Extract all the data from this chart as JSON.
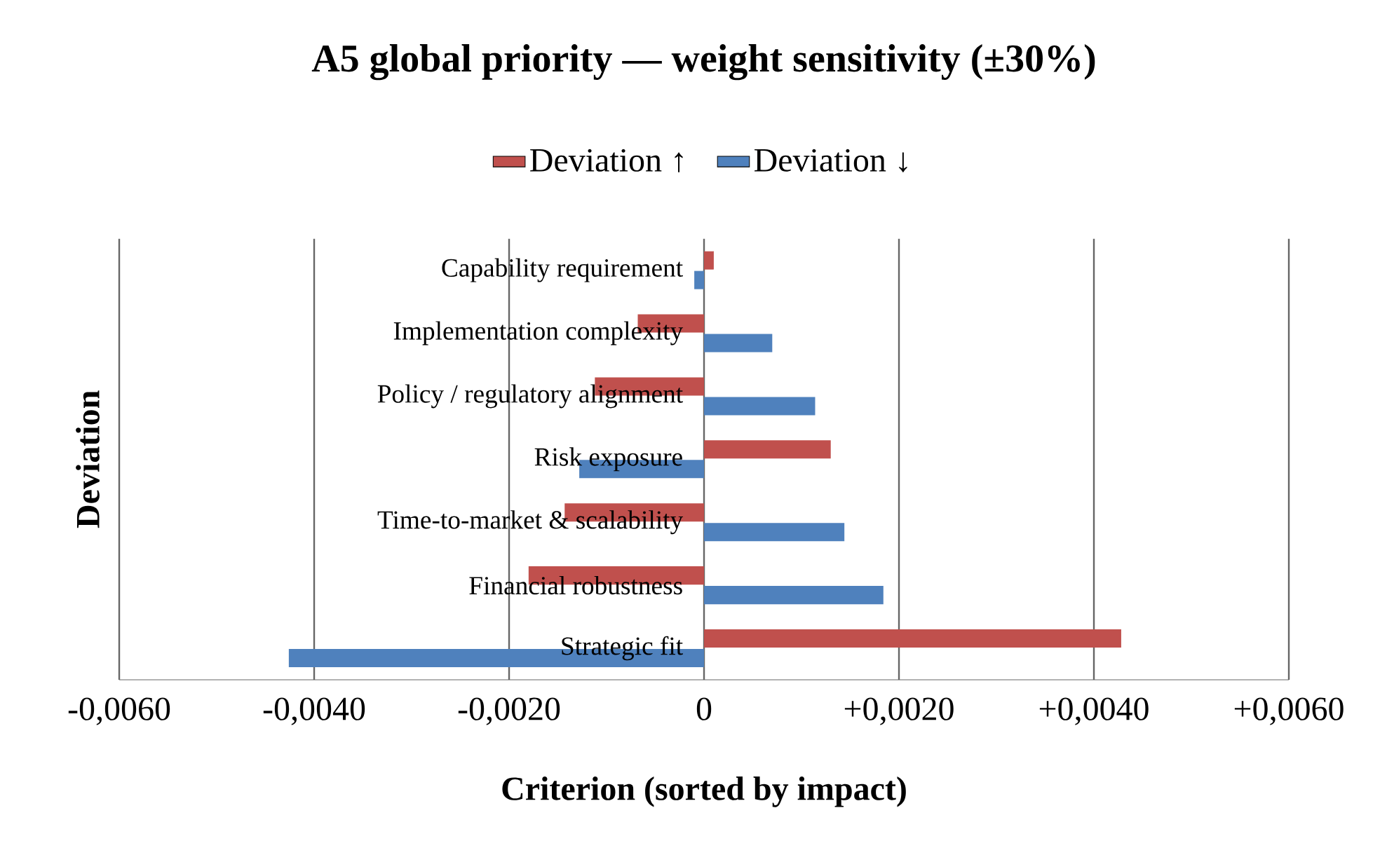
{
  "chart_data": {
    "type": "bar",
    "orientation": "horizontal",
    "title": "A5 global priority — weight sensitivity (±30%)",
    "xlabel": "Criterion (sorted by impact)",
    "ylabel": "Deviation",
    "categories": [
      "Capability requirement",
      "Implementation complexity",
      "Policy / regulatory alignment",
      "Risk exposure",
      "Time-to-market & scalability",
      "Financial robustness",
      "Strategic fit"
    ],
    "series": [
      {
        "name": "Deviation ↑",
        "color": "#c0504d",
        "values": [
          0.0001,
          -0.00068,
          -0.00112,
          0.0013,
          -0.00143,
          -0.0018,
          0.00428
        ]
      },
      {
        "name": "Deviation ↓",
        "color": "#4f81bd",
        "values": [
          -0.0001,
          0.0007,
          0.00114,
          -0.00128,
          0.00144,
          0.00184,
          -0.00426
        ]
      }
    ],
    "xlim": [
      -0.006,
      0.006
    ],
    "xticks": [
      {
        "value": -0.006,
        "label": "-0,0060"
      },
      {
        "value": -0.004,
        "label": "-0,0040"
      },
      {
        "value": -0.002,
        "label": "-0,0020"
      },
      0,
      {
        "value": 0.002,
        "label": "+0,0020"
      },
      {
        "value": 0.004,
        "label": "+0,0040"
      },
      {
        "value": 0.006,
        "label": "+0,0060"
      }
    ],
    "grid": "x",
    "legend": "top"
  }
}
